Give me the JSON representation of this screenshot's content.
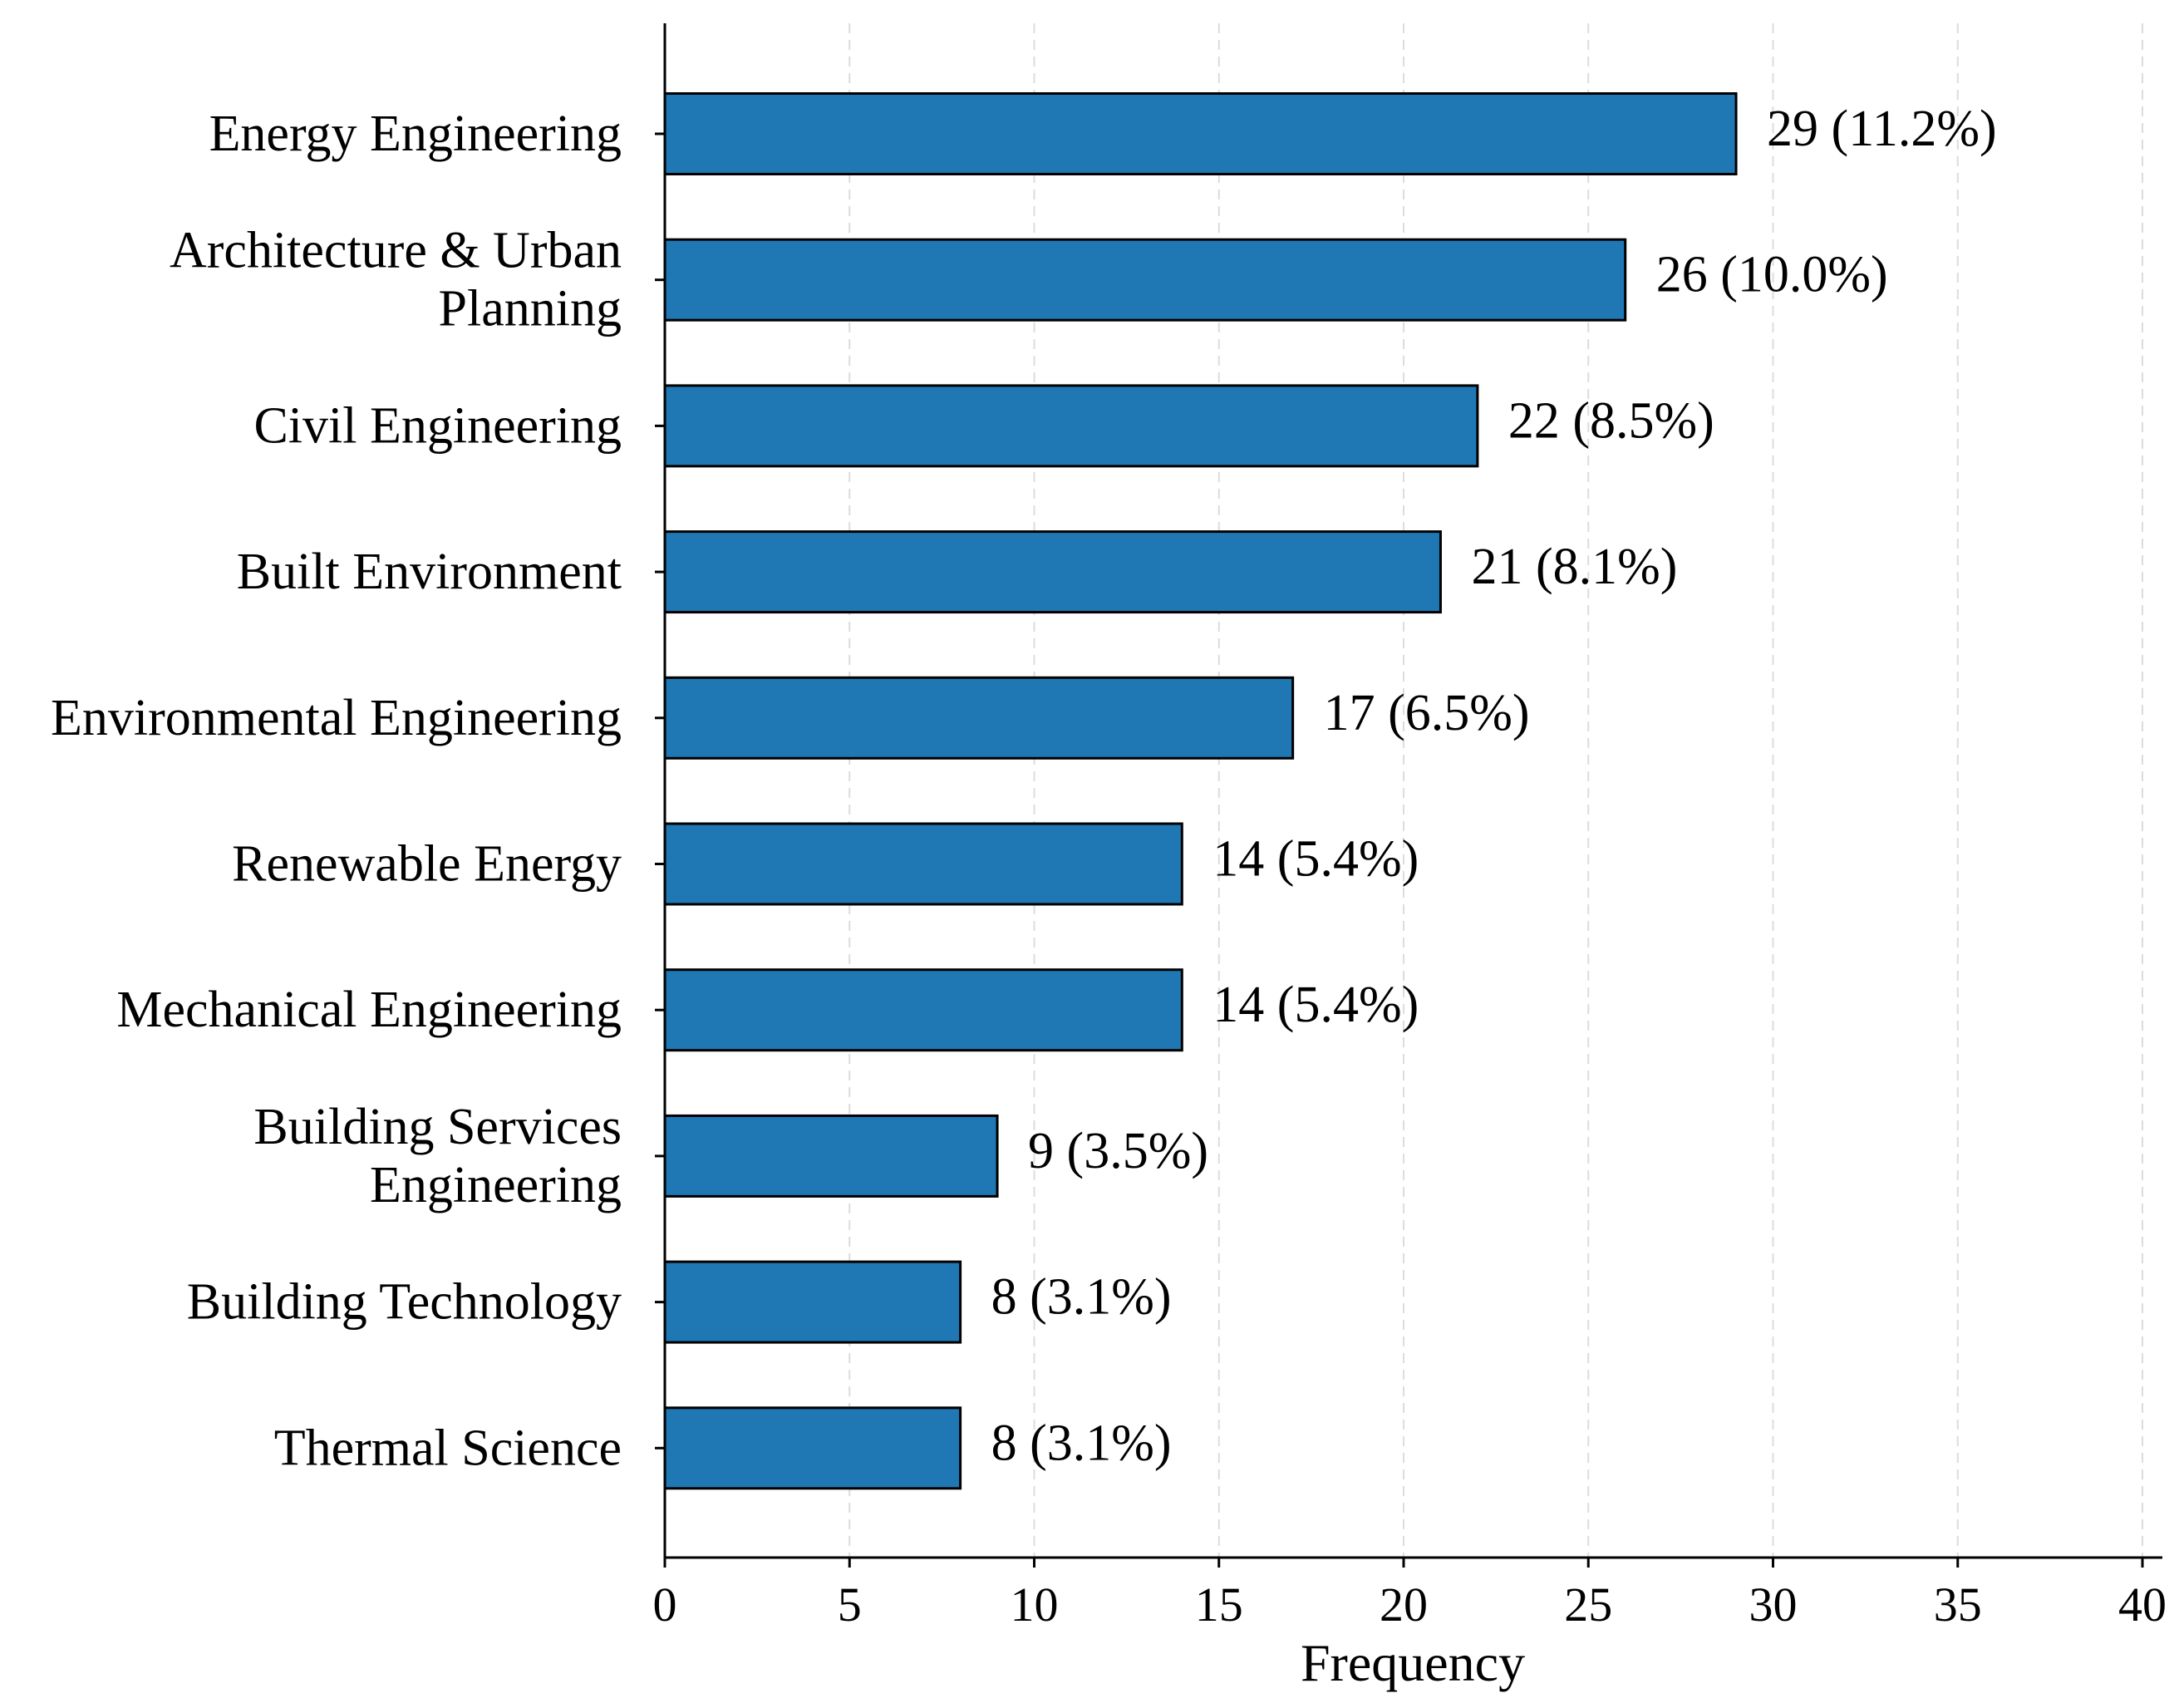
{
  "chart_data": {
    "type": "bar",
    "orientation": "horizontal",
    "title": "",
    "xlabel": "Frequency",
    "ylabel": "",
    "xlim": [
      0,
      40
    ],
    "xticks": [
      0,
      5,
      10,
      15,
      20,
      25,
      30,
      35,
      40
    ],
    "grid": "x dashed",
    "bar_color": "#1f77b4",
    "categories": [
      [
        "Energy Engineering"
      ],
      [
        "Architecture & Urban",
        "Planning"
      ],
      [
        "Civil Engineering"
      ],
      [
        "Built Environment"
      ],
      [
        "Environmental Engineering"
      ],
      [
        "Renewable Energy"
      ],
      [
        "Mechanical Engineering"
      ],
      [
        "Building Services",
        "Engineering"
      ],
      [
        "Building Technology"
      ],
      [
        "Thermal Science"
      ]
    ],
    "values": [
      29,
      26,
      22,
      21,
      17,
      14,
      14,
      9,
      8,
      8
    ],
    "data_labels": [
      "29 (11.2%)",
      "26 (10.0%)",
      "22 (8.5%)",
      "21 (8.1%)",
      "17 (6.5%)",
      "14 (5.4%)",
      "14 (5.4%)",
      "9 (3.5%)",
      "8 (3.1%)",
      "8 (3.1%)"
    ]
  }
}
